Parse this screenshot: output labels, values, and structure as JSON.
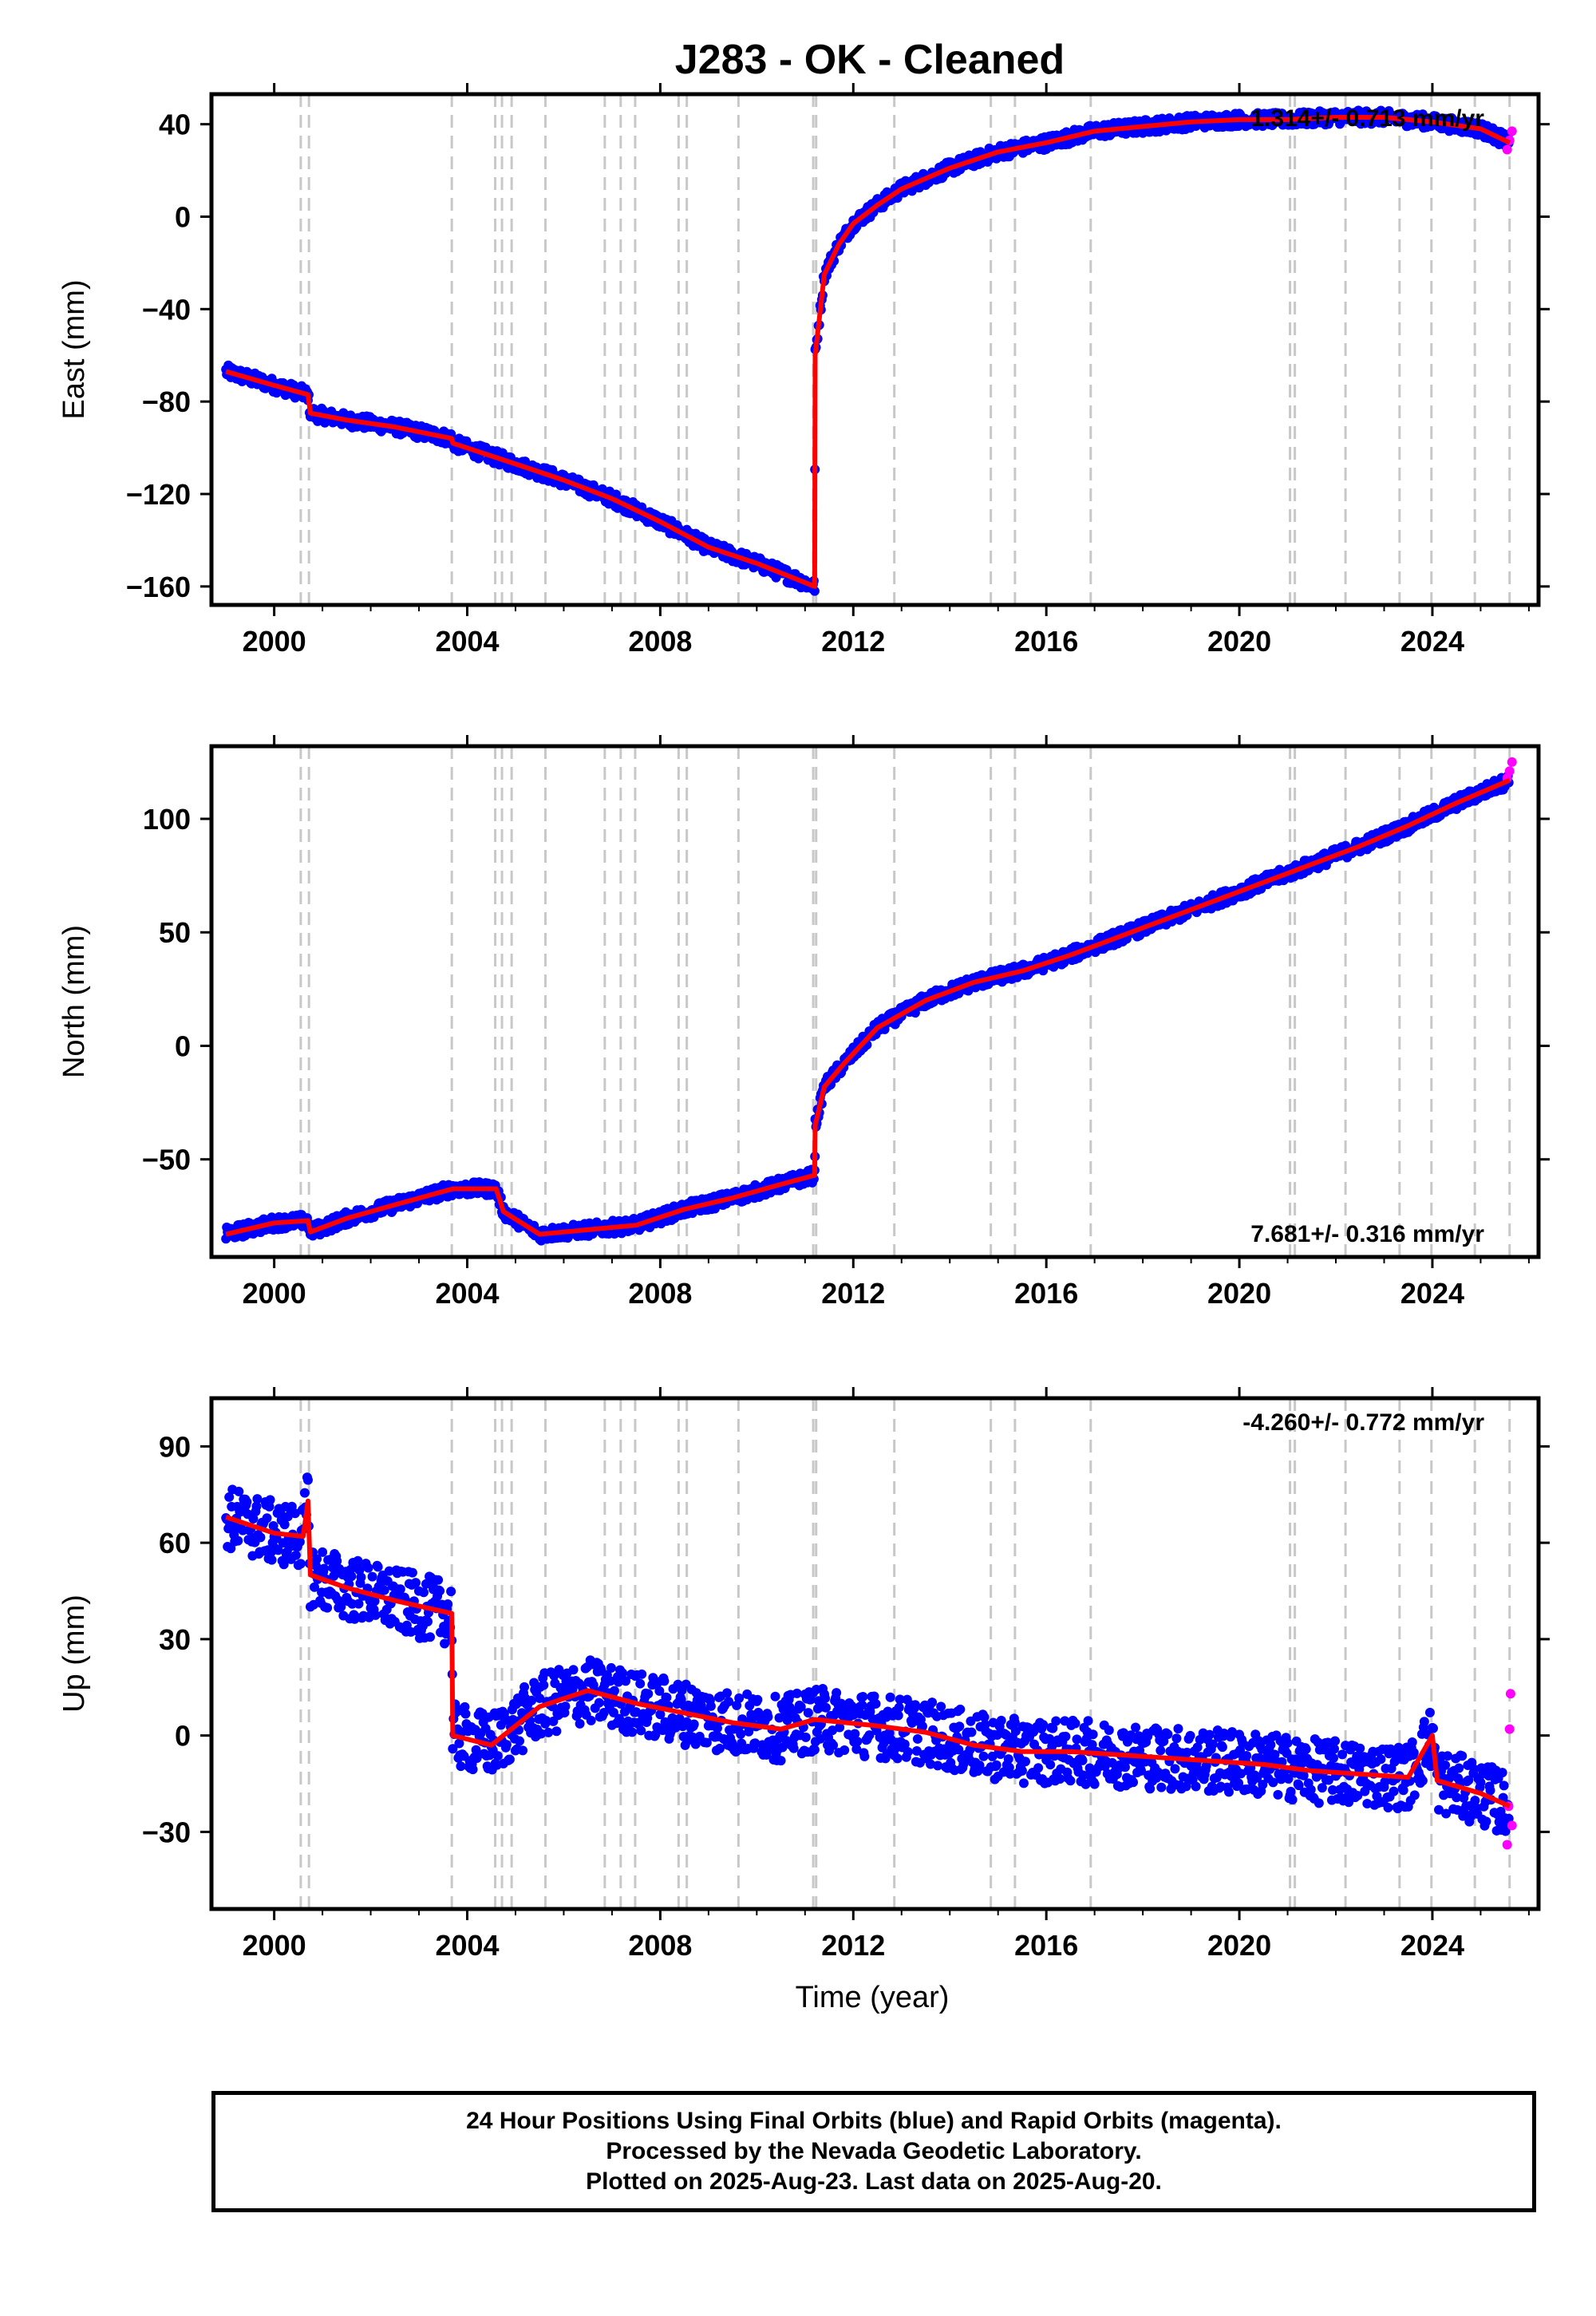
{
  "title": "J283  - OK - Cleaned",
  "colors": {
    "final": "#0000ff",
    "rapid": "#ff00ff",
    "model": "#ff0000",
    "steps": "#c8c8c8"
  },
  "xlabel": "Time (year)",
  "x_ticks": [
    2000,
    2004,
    2008,
    2012,
    2016,
    2020,
    2024
  ],
  "x_range": [
    1998.7,
    2026.2
  ],
  "step_epochs": [
    2000.55,
    2000.72,
    2003.68,
    2004.58,
    2004.72,
    2004.92,
    2005.62,
    2006.85,
    2007.18,
    2007.48,
    2008.38,
    2008.55,
    2009.62,
    2011.17,
    2011.23,
    2012.85,
    2014.85,
    2015.35,
    2016.92,
    2021.05,
    2021.15,
    2022.2,
    2023.32,
    2023.98,
    2024.88,
    2025.6
  ],
  "footer": {
    "line1": "24 Hour Positions Using Final Orbits (blue) and Rapid Orbits (magenta).",
    "line2": "Processed by the Nevada Geodetic Laboratory.",
    "line3": "Plotted on 2025-Aug-23. Last data on 2025-Aug-20."
  },
  "chart_data": [
    {
      "type": "scatter",
      "component": "east",
      "ylabel": "East (mm)",
      "ylim": [
        -168,
        53
      ],
      "y_ticks": [
        40,
        0,
        -40,
        -80,
        -120,
        -160
      ],
      "rate": "1.314+/- 0.713 mm/yr",
      "rate_position": "top-right",
      "model_line": {
        "x": [
          1999.0,
          2000.0,
          2000.7,
          2000.75,
          2001.5,
          2002.5,
          2003.68,
          2003.7,
          2005.0,
          2006.0,
          2007.0,
          2008.0,
          2009.0,
          2010.0,
          2011.2,
          2011.21,
          2011.4,
          2011.7,
          2012.0,
          2012.5,
          2013.0,
          2014.0,
          2015.0,
          2016.0,
          2017.0,
          2018.0,
          2019.0,
          2020.0,
          2021.0,
          2022.0,
          2023.0,
          2024.0,
          2025.0,
          2025.6
        ],
        "y": [
          -67,
          -73,
          -77,
          -85,
          -88,
          -91,
          -96,
          -98,
          -107,
          -114,
          -122,
          -132,
          -143,
          -150,
          -160,
          -60,
          -25,
          -12,
          -3,
          5,
          12,
          21,
          28,
          32,
          37,
          39,
          41,
          42,
          42,
          43,
          43,
          41,
          38,
          32
        ]
      },
      "final_points": {
        "x": [
          1999.0,
          2000.0,
          2000.7,
          2000.75,
          2001.5,
          2002.5,
          2003.68,
          2003.7,
          2005.0,
          2006.0,
          2007.0,
          2008.0,
          2009.0,
          2010.0,
          2011.2,
          2011.21,
          2011.4,
          2011.7,
          2012.0,
          2012.5,
          2013.0,
          2014.0,
          2015.0,
          2016.0,
          2017.0,
          2018.0,
          2019.0,
          2020.0,
          2021.0,
          2022.0,
          2023.0,
          2024.0,
          2025.0,
          2025.6
        ],
        "y": [
          -67,
          -73,
          -77,
          -85,
          -88,
          -91,
          -96,
          -98,
          -107,
          -114,
          -122,
          -132,
          -143,
          -150,
          -160,
          -60,
          -25,
          -12,
          -3,
          5,
          12,
          21,
          28,
          32,
          37,
          39,
          41,
          42,
          42,
          43,
          43,
          41,
          38,
          32
        ],
        "scatter": 3
      },
      "rapid_points": {
        "x": [
          2025.55,
          2025.6,
          2025.65
        ],
        "y": [
          29,
          33,
          37
        ]
      }
    },
    {
      "type": "scatter",
      "component": "north",
      "ylabel": "North (mm)",
      "ylim": [
        -93,
        132
      ],
      "y_ticks": [
        100,
        50,
        0,
        -50
      ],
      "rate": "7.681+/- 0.316 mm/yr",
      "rate_position": "bottom-right",
      "model_line": {
        "x": [
          1999.0,
          2000.0,
          2000.7,
          2000.75,
          2001.5,
          2002.5,
          2003.7,
          2004.6,
          2004.75,
          2005.5,
          2006.5,
          2007.5,
          2008.5,
          2009.5,
          2010.5,
          2011.2,
          2011.21,
          2011.4,
          2011.8,
          2012.5,
          2013.5,
          2014.5,
          2015.5,
          2016.5,
          2017.5,
          2018.5,
          2019.5,
          2020.5,
          2021.5,
          2022.5,
          2023.5,
          2024.5,
          2025.6
        ],
        "y": [
          -83,
          -78,
          -77,
          -82,
          -76,
          -70,
          -63,
          -63,
          -73,
          -83,
          -81,
          -79,
          -72,
          -67,
          -61,
          -57,
          -35,
          -18,
          -8,
          8,
          20,
          28,
          33,
          40,
          48,
          56,
          64,
          72,
          80,
          88,
          97,
          107,
          117
        ]
      },
      "final_points": {
        "x": [
          1999.0,
          2000.0,
          2000.7,
          2000.75,
          2001.5,
          2002.5,
          2003.7,
          2004.6,
          2004.75,
          2005.5,
          2006.5,
          2007.5,
          2008.5,
          2009.5,
          2010.5,
          2011.2,
          2011.21,
          2011.4,
          2011.8,
          2012.5,
          2013.5,
          2014.5,
          2015.5,
          2016.5,
          2017.5,
          2018.5,
          2019.5,
          2020.5,
          2021.5,
          2022.5,
          2023.5,
          2024.5,
          2025.6
        ],
        "y": [
          -83,
          -78,
          -77,
          -82,
          -76,
          -70,
          -63,
          -63,
          -73,
          -83,
          -81,
          -79,
          -72,
          -67,
          -61,
          -57,
          -35,
          -18,
          -8,
          8,
          20,
          28,
          33,
          40,
          48,
          56,
          64,
          72,
          80,
          88,
          97,
          107,
          117
        ],
        "scatter": 3
      },
      "rapid_points": {
        "x": [
          2025.55,
          2025.6,
          2025.65
        ],
        "y": [
          118,
          121,
          125
        ]
      }
    },
    {
      "type": "scatter",
      "component": "up",
      "ylabel": "Up (mm)",
      "ylim": [
        -54,
        105
      ],
      "y_ticks": [
        90,
        60,
        30,
        0,
        -30
      ],
      "rate": "-4.260+/- 0.772 mm/yr",
      "rate_position": "top-right",
      "model_line": {
        "x": [
          1999.0,
          2000.0,
          2000.6,
          2000.7,
          2000.75,
          2001.5,
          2002.5,
          2003.68,
          2003.7,
          2004.5,
          2005.5,
          2006.5,
          2007.5,
          2008.5,
          2009.5,
          2010.5,
          2011.2,
          2012.5,
          2013.5,
          2014.5,
          2015.5,
          2016.5,
          2017.5,
          2018.5,
          2019.5,
          2020.5,
          2021.5,
          2022.5,
          2023.5,
          2024.0,
          2024.1,
          2025.0,
          2025.6
        ],
        "y": [
          68,
          63,
          62,
          73,
          50,
          46,
          42,
          38,
          0,
          -3,
          9,
          14,
          10,
          7,
          4,
          2,
          5,
          3,
          1,
          -3,
          -5,
          -5,
          -6,
          -7,
          -8,
          -9,
          -11,
          -12,
          -13,
          0,
          -14,
          -18,
          -22
        ]
      },
      "final_points": {
        "x": [
          1999.0,
          2000.0,
          2000.6,
          2000.7,
          2000.75,
          2001.5,
          2002.5,
          2003.68,
          2003.7,
          2004.5,
          2005.5,
          2006.5,
          2007.5,
          2008.5,
          2009.5,
          2010.5,
          2011.2,
          2012.5,
          2013.5,
          2014.5,
          2015.5,
          2016.5,
          2017.5,
          2018.5,
          2019.5,
          2020.5,
          2021.5,
          2022.5,
          2023.5,
          2024.0,
          2024.1,
          2025.0,
          2025.6
        ],
        "y": [
          68,
          63,
          62,
          73,
          50,
          46,
          42,
          38,
          0,
          -3,
          9,
          14,
          10,
          7,
          4,
          2,
          5,
          3,
          1,
          -3,
          -5,
          -5,
          -6,
          -7,
          -8,
          -9,
          -11,
          -12,
          -13,
          0,
          -14,
          -18,
          -22
        ],
        "scatter": 10
      },
      "rapid_points": {
        "x": [
          2025.55,
          2025.58,
          2025.6,
          2025.62,
          2025.65
        ],
        "y": [
          -34,
          -22,
          2,
          13,
          -28
        ]
      }
    }
  ]
}
